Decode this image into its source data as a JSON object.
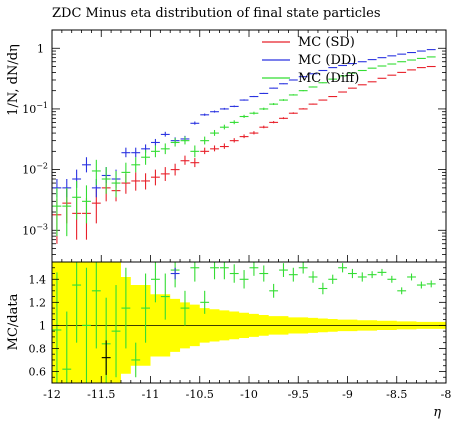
{
  "chart_data": [
    {
      "type": "scatter",
      "title": "ZDC Minus eta distribution of final state particles",
      "xlabel": "",
      "ylabel": "1/N, dN/dη",
      "yscale": "log",
      "xlim": [
        -12,
        -8
      ],
      "ylim": [
        0.0003,
        2
      ],
      "ytick_labels": [
        "10",
        "10",
        "10",
        "1"
      ],
      "ytick_exps": [
        "−3",
        "−2",
        "−1",
        ""
      ],
      "legend_position": "top-right",
      "x": [
        -11.95,
        -11.85,
        -11.75,
        -11.65,
        -11.55,
        -11.45,
        -11.35,
        -11.25,
        -11.15,
        -11.05,
        -10.95,
        -10.85,
        -10.75,
        -10.65,
        -10.55,
        -10.45,
        -10.35,
        -10.25,
        -10.15,
        -10.05,
        -9.95,
        -9.85,
        -9.75,
        -9.65,
        -9.55,
        -9.45,
        -9.35,
        -9.25,
        -9.15,
        -9.05,
        -8.95,
        -8.85,
        -8.75,
        -8.65,
        -8.55,
        -8.45,
        -8.35,
        -8.25,
        -8.15
      ],
      "series": [
        {
          "name": "MC (SD)",
          "color": "#e8202a",
          "values": [
            0.0018,
            0.0028,
            0.0019,
            0.0019,
            0.0028,
            0.005,
            0.0045,
            0.006,
            0.0065,
            0.0065,
            0.0075,
            0.0085,
            0.01,
            0.014,
            0.013,
            0.02,
            0.022,
            0.024,
            0.03,
            0.035,
            0.04,
            0.05,
            0.06,
            0.07,
            0.085,
            0.1,
            0.12,
            0.14,
            0.16,
            0.19,
            0.22,
            0.25,
            0.28,
            0.32,
            0.36,
            0.4,
            0.44,
            0.48,
            0.5
          ],
          "yerr_lo": [
            0.0012,
            0.0015,
            0.0012,
            0.0012,
            0.0015,
            0.002,
            0.0015,
            0.002,
            0.002,
            0.0018,
            0.002,
            0.002,
            0.002,
            0.002,
            0.002,
            0.002,
            0.002,
            0.002,
            0.002,
            0.002,
            0.002,
            0.002,
            0.002,
            0.002,
            0.002,
            0.002,
            0.002,
            0.002,
            0.002,
            0.002,
            0.002,
            0.002,
            0.002,
            0.002,
            0.002,
            0.002,
            0.002,
            0.002,
            0.002
          ],
          "yerr_hi": [
            0.0015,
            0.002,
            0.0015,
            0.0015,
            0.002,
            0.0025,
            0.002,
            0.0025,
            0.0025,
            0.0022,
            0.0025,
            0.0025,
            0.0025,
            0.003,
            0.0025,
            0.003,
            0.003,
            0.003,
            0.003,
            0.003,
            0.003,
            0.003,
            0.003,
            0.003,
            0.003,
            0.003,
            0.003,
            0.003,
            0.003,
            0.003,
            0.003,
            0.003,
            0.003,
            0.003,
            0.003,
            0.003,
            0.003,
            0.003,
            0.003
          ]
        },
        {
          "name": "MC (DD)",
          "color": "#2a33e0",
          "values": [
            0.005,
            0.005,
            0.007,
            0.012,
            0.005,
            0.008,
            0.007,
            0.019,
            0.019,
            0.022,
            0.028,
            0.038,
            0.03,
            0.032,
            0.058,
            0.08,
            0.09,
            0.1,
            0.11,
            0.14,
            0.16,
            0.18,
            0.22,
            0.26,
            0.3,
            0.34,
            0.38,
            0.43,
            0.48,
            0.52,
            0.56,
            0.6,
            0.65,
            0.7,
            0.75,
            0.8,
            0.85,
            0.9,
            0.95
          ],
          "yerr_lo": [
            0.0015,
            0.0015,
            0.002,
            0.003,
            0.0015,
            0.002,
            0.002,
            0.003,
            0.003,
            0.003,
            0.003,
            0.003,
            0.003,
            0.003,
            0.003,
            0.003,
            0.003,
            0.003,
            0.003,
            0.003,
            0.003,
            0.003,
            0.003,
            0.003,
            0.003,
            0.003,
            0.003,
            0.003,
            0.003,
            0.003,
            0.003,
            0.003,
            0.003,
            0.003,
            0.003,
            0.003,
            0.003,
            0.003,
            0.003
          ],
          "yerr_hi": [
            0.002,
            0.002,
            0.003,
            0.004,
            0.002,
            0.003,
            0.003,
            0.004,
            0.004,
            0.004,
            0.004,
            0.004,
            0.004,
            0.004,
            0.004,
            0.004,
            0.004,
            0.004,
            0.004,
            0.004,
            0.004,
            0.004,
            0.004,
            0.004,
            0.004,
            0.004,
            0.004,
            0.004,
            0.004,
            0.004,
            0.004,
            0.004,
            0.004,
            0.004,
            0.004,
            0.004,
            0.004,
            0.004,
            0.004
          ]
        },
        {
          "name": "MC (Diff)",
          "color": "#33dd33",
          "values": [
            0.0025,
            0.0025,
            0.0035,
            0.003,
            0.0095,
            0.007,
            0.006,
            0.009,
            0.012,
            0.016,
            0.02,
            0.022,
            0.028,
            0.03,
            0.02,
            0.03,
            0.04,
            0.05,
            0.06,
            0.075,
            0.085,
            0.1,
            0.12,
            0.14,
            0.17,
            0.2,
            0.23,
            0.27,
            0.31,
            0.35,
            0.39,
            0.43,
            0.47,
            0.51,
            0.55,
            0.6,
            0.64,
            0.68,
            0.72
          ],
          "yerr_lo": [
            0.0017,
            0.0017,
            0.002,
            0.0017,
            0.004,
            0.003,
            0.0025,
            0.003,
            0.003,
            0.004,
            0.004,
            0.004,
            0.004,
            0.004,
            0.004,
            0.004,
            0.004,
            0.004,
            0.004,
            0.004,
            0.004,
            0.004,
            0.004,
            0.004,
            0.004,
            0.004,
            0.004,
            0.004,
            0.004,
            0.004,
            0.004,
            0.004,
            0.004,
            0.004,
            0.004,
            0.004,
            0.004,
            0.004,
            0.004
          ],
          "yerr_hi": [
            0.0025,
            0.0025,
            0.003,
            0.0025,
            0.005,
            0.004,
            0.0035,
            0.004,
            0.004,
            0.005,
            0.005,
            0.005,
            0.005,
            0.005,
            0.005,
            0.005,
            0.005,
            0.005,
            0.005,
            0.005,
            0.005,
            0.005,
            0.005,
            0.005,
            0.005,
            0.005,
            0.005,
            0.005,
            0.005,
            0.005,
            0.005,
            0.005,
            0.005,
            0.005,
            0.005,
            0.005,
            0.005,
            0.005,
            0.005
          ]
        }
      ]
    },
    {
      "type": "scatter",
      "xlabel": "η",
      "ylabel": "MC/data",
      "xlim": [
        -12,
        -8
      ],
      "ylim": [
        0.5,
        1.55
      ],
      "xticks": [
        -12,
        -11.5,
        -11,
        -10.5,
        -10,
        -9.5,
        -9,
        -8.5,
        -8
      ],
      "xtick_labels": [
        "-12",
        "-11.5",
        "-11",
        "-10.5",
        "-10",
        "-9.5",
        "-9",
        "-8.5",
        "-8"
      ],
      "yticks": [
        0.6,
        0.8,
        1,
        1.2,
        1.4
      ],
      "ytick_labels": [
        "0.6",
        "0.8",
        "1",
        "1.2",
        "1.4"
      ],
      "reference_line": 1,
      "band_color": "#ffff00",
      "band_x": [
        -12,
        -11.9,
        -11.8,
        -11.7,
        -11.6,
        -11.5,
        -11.4,
        -11.3,
        -11.2,
        -11.1,
        -11.0,
        -10.9,
        -10.8,
        -10.7,
        -10.6,
        -10.5,
        -10.4,
        -10.3,
        -10.2,
        -10.1,
        -10.0,
        -9.9,
        -9.8,
        -9.7,
        -9.6,
        -9.5,
        -9.4,
        -9.3,
        -9.2,
        -9.1,
        -9.0,
        -8.9,
        -8.8,
        -8.7,
        -8.6,
        -8.5,
        -8.4,
        -8.3,
        -8.2,
        -8.1
      ],
      "band_half_width": [
        0.6,
        0.6,
        0.6,
        0.6,
        0.6,
        0.6,
        0.6,
        0.42,
        0.35,
        0.35,
        0.27,
        0.27,
        0.23,
        0.2,
        0.18,
        0.15,
        0.14,
        0.13,
        0.12,
        0.11,
        0.1,
        0.09,
        0.08,
        0.08,
        0.07,
        0.07,
        0.065,
        0.06,
        0.055,
        0.05,
        0.05,
        0.045,
        0.045,
        0.04,
        0.04,
        0.035,
        0.035,
        0.03,
        0.03,
        0.03
      ],
      "x": [
        -11.95,
        -11.85,
        -11.75,
        -11.65,
        -11.55,
        -11.45,
        -11.35,
        -11.25,
        -11.15,
        -11.05,
        -10.95,
        -10.85,
        -10.75,
        -10.65,
        -10.55,
        -10.45,
        -10.35,
        -10.25,
        -10.15,
        -10.05,
        -9.95,
        -9.85,
        -9.75,
        -9.65,
        -9.55,
        -9.45,
        -9.35,
        -9.25,
        -9.15,
        -9.05,
        -8.95,
        -8.85,
        -8.75,
        -8.65,
        -8.55,
        -8.45,
        -8.35,
        -8.25,
        -8.15
      ],
      "series": [
        {
          "name": "MC (Diff)",
          "color": "#33dd33",
          "values": [
            0.96,
            0.62,
            1.35,
            1.0,
            1.3,
            0.84,
            0.95,
            1.15,
            0.7,
            1.15,
            1.4,
            1.25,
            1.48,
            1.15,
            1.5,
            1.2,
            1.5,
            1.5,
            1.45,
            1.4,
            1.5,
            1.45,
            1.3,
            1.48,
            1.44,
            1.5,
            1.42,
            1.32,
            1.4,
            1.5,
            1.45,
            1.42,
            1.44,
            1.46,
            1.4,
            1.3,
            1.42,
            1.35,
            1.36
          ],
          "yerr": [
            0.5,
            0.5,
            0.5,
            0.5,
            0.5,
            0.4,
            0.4,
            0.35,
            0.15,
            0.3,
            0.2,
            0.2,
            0.15,
            0.15,
            0.12,
            0.1,
            0.1,
            0.1,
            0.08,
            0.08,
            0.07,
            0.07,
            0.06,
            0.06,
            0.06,
            0.05,
            0.05,
            0.05,
            0.04,
            0.04,
            0.04,
            0.04,
            0.03,
            0.03,
            0.03,
            0.03,
            0.03,
            0.03,
            0.03
          ]
        },
        {
          "name": "MC (SD)",
          "color": "#e8202a",
          "values": [
            null,
            null,
            null,
            null,
            null,
            null,
            null,
            null,
            null,
            null,
            null,
            null,
            null,
            null,
            null,
            null,
            null,
            null,
            null,
            null,
            null,
            null,
            null,
            null,
            null,
            null,
            null,
            null,
            null,
            null,
            null,
            null,
            null,
            null,
            null,
            null,
            null,
            null,
            null
          ],
          "yerr": []
        },
        {
          "name": "MC (DD)",
          "color": "#2a33e0",
          "values": [
            null,
            null,
            null,
            null,
            null,
            null,
            null,
            null,
            null,
            null,
            null,
            null,
            1.45,
            null,
            null,
            null,
            null,
            null,
            null,
            null,
            null,
            null,
            null,
            null,
            null,
            null,
            null,
            null,
            null,
            null,
            null,
            null,
            null,
            null,
            null,
            null,
            null,
            null,
            null
          ],
          "yerr": [
            0,
            0,
            0,
            0,
            0,
            0,
            0,
            0,
            0,
            0,
            0,
            0,
            0.05
          ]
        }
      ],
      "data_points": {
        "color": "#000000",
        "x": [
          -11.45
        ],
        "values": [
          0.72
        ],
        "yerr": [
          0.15
        ]
      }
    }
  ]
}
